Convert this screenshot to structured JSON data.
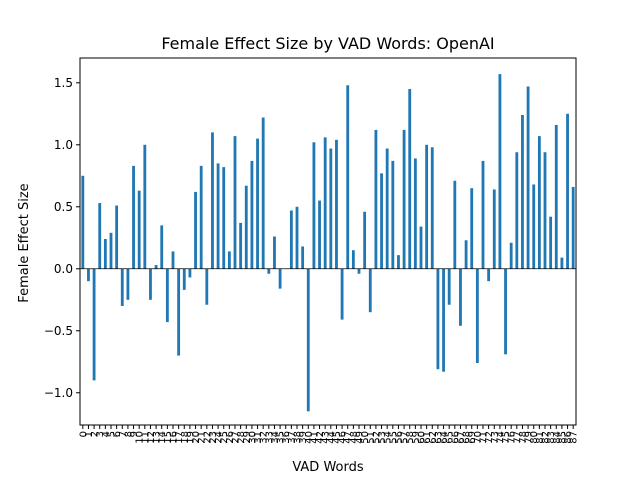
{
  "chart_data": {
    "type": "bar",
    "title": "Female Effect Size by VAD Words: OpenAI",
    "xlabel": "VAD Words",
    "ylabel": "Female Effect Size",
    "ylim": [
      -1.26,
      1.7
    ],
    "yticks": [
      -1.0,
      -0.5,
      0.0,
      0.5,
      1.0,
      1.5
    ],
    "ytick_labels": [
      "−1.0",
      "−0.5",
      "0.0",
      "0.5",
      "1.0",
      "1.5"
    ],
    "grid": false,
    "bar_color": "#1f77b4",
    "categories": [
      "0",
      "1",
      "2",
      "3",
      "4",
      "5",
      "6",
      "7",
      "8",
      "9",
      "10",
      "11",
      "12",
      "13",
      "14",
      "15",
      "16",
      "17",
      "18",
      "19",
      "20",
      "21",
      "22",
      "23",
      "24",
      "25",
      "26",
      "27",
      "28",
      "29",
      "30",
      "31",
      "32",
      "33",
      "34",
      "35",
      "36",
      "37",
      "38",
      "39",
      "40",
      "41",
      "42",
      "43",
      "44",
      "45",
      "46",
      "47",
      "48",
      "49",
      "50",
      "51",
      "52",
      "53",
      "54",
      "55",
      "56",
      "57",
      "58",
      "59",
      "60",
      "61",
      "62",
      "63",
      "64",
      "65",
      "66",
      "67",
      "68",
      "69",
      "70",
      "71",
      "72",
      "73",
      "74",
      "75",
      "76",
      "77",
      "78",
      "79",
      "80",
      "81",
      "82",
      "83",
      "84",
      "85",
      "86",
      "87"
    ],
    "values": [
      0.75,
      -0.1,
      -0.9,
      0.53,
      0.24,
      0.29,
      0.51,
      -0.3,
      -0.25,
      0.83,
      0.63,
      1.0,
      -0.25,
      0.03,
      0.35,
      -0.43,
      0.14,
      -0.7,
      -0.17,
      -0.07,
      0.62,
      0.83,
      -0.29,
      1.1,
      0.85,
      0.82,
      0.14,
      1.07,
      0.37,
      0.67,
      0.87,
      1.05,
      1.22,
      -0.04,
      0.26,
      -0.16,
      0.0,
      0.47,
      0.5,
      0.18,
      -1.15,
      1.02,
      0.55,
      1.06,
      0.97,
      1.04,
      -0.41,
      1.48,
      0.15,
      -0.04,
      0.46,
      -0.35,
      1.12,
      0.77,
      0.97,
      0.87,
      0.11,
      1.12,
      1.45,
      0.89,
      0.34,
      1.0,
      0.98,
      -0.81,
      -0.83,
      -0.29,
      0.71,
      -0.46,
      0.23,
      0.65,
      -0.76,
      0.87,
      -0.1,
      0.64,
      1.57,
      -0.69,
      0.21,
      0.94,
      1.24,
      1.47,
      0.68,
      1.07,
      0.94,
      0.42,
      1.16,
      0.09,
      1.25,
      0.66
    ]
  }
}
